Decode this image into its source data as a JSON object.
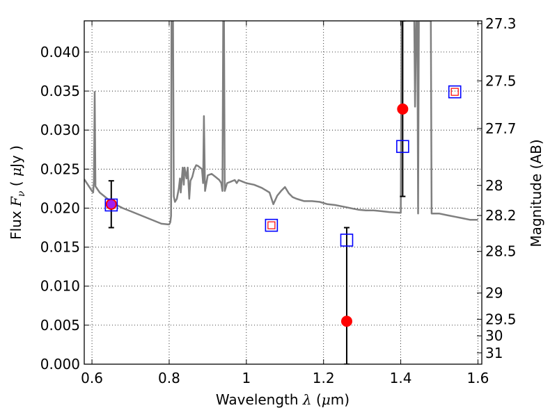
{
  "chart_data": {
    "type": "scatter",
    "xlabel": {
      "prefix": "Wavelength  ",
      "symbol": "λ",
      "unit_open": " (",
      "unit_sym": "μ",
      "unit_close": "m)"
    },
    "ylabel": {
      "prefix": "Flux  ",
      "symbol": "F",
      "sub": "ν",
      "unit_open": "  ( ",
      "unit_sym": "μ",
      "unit_close": "Jy )"
    },
    "y2label": "Magnitude (AB)",
    "xlim": [
      0.58,
      1.61
    ],
    "ylim": [
      0.0,
      0.044
    ],
    "grid": true,
    "x_ticks": [
      {
        "v": 0.6,
        "label": "0.6"
      },
      {
        "v": 0.8,
        "label": "0.8"
      },
      {
        "v": 1.0,
        "label": "1"
      },
      {
        "v": 1.2,
        "label": "1.2"
      },
      {
        "v": 1.4,
        "label": "1.4"
      },
      {
        "v": 1.6,
        "label": "1.6"
      }
    ],
    "y_ticks": [
      {
        "v": 0.0,
        "label": "0.000"
      },
      {
        "v": 0.005,
        "label": "0.005"
      },
      {
        "v": 0.01,
        "label": "0.010"
      },
      {
        "v": 0.015,
        "label": "0.015"
      },
      {
        "v": 0.02,
        "label": "0.020"
      },
      {
        "v": 0.025,
        "label": "0.025"
      },
      {
        "v": 0.03,
        "label": "0.030"
      },
      {
        "v": 0.035,
        "label": "0.035"
      },
      {
        "v": 0.04,
        "label": "0.040"
      }
    ],
    "mag_ticks": [
      {
        "v": 27.3,
        "label": "27.3"
      },
      {
        "v": 27.5,
        "label": "27.5"
      },
      {
        "v": 27.7,
        "label": "27.7"
      },
      {
        "v": 28.0,
        "label": "28"
      },
      {
        "v": 28.2,
        "label": "28.2"
      },
      {
        "v": 28.5,
        "label": "28.5"
      },
      {
        "v": 29.0,
        "label": "29"
      },
      {
        "v": 29.5,
        "label": "29.5"
      },
      {
        "v": 30.0,
        "label": "30"
      },
      {
        "v": 31.0,
        "label": "31"
      }
    ],
    "model_spectrum": {
      "color": "#7f7f7f",
      "points": [
        [
          0.58,
          0.0237
        ],
        [
          0.6,
          0.0222
        ],
        [
          0.603,
          0.022
        ],
        [
          0.605,
          0.0235
        ],
        [
          0.607,
          0.0349
        ],
        [
          0.609,
          0.0228
        ],
        [
          0.62,
          0.022
        ],
        [
          0.64,
          0.0212
        ],
        [
          0.66,
          0.0205
        ],
        [
          0.68,
          0.02
        ],
        [
          0.7,
          0.0196
        ],
        [
          0.72,
          0.0192
        ],
        [
          0.74,
          0.0188
        ],
        [
          0.76,
          0.0184
        ],
        [
          0.78,
          0.018
        ],
        [
          0.8,
          0.0179
        ],
        [
          0.803,
          0.0182
        ],
        [
          0.805,
          0.019
        ],
        [
          0.806,
          0.044
        ],
        [
          0.808,
          0.044
        ],
        [
          0.81,
          0.044
        ],
        [
          0.812,
          0.0215
        ],
        [
          0.815,
          0.0208
        ],
        [
          0.82,
          0.0212
        ],
        [
          0.825,
          0.0225
        ],
        [
          0.828,
          0.0238
        ],
        [
          0.83,
          0.022
        ],
        [
          0.835,
          0.0252
        ],
        [
          0.838,
          0.023
        ],
        [
          0.84,
          0.0252
        ],
        [
          0.845,
          0.0238
        ],
        [
          0.848,
          0.0252
        ],
        [
          0.852,
          0.0212
        ],
        [
          0.855,
          0.0235
        ],
        [
          0.86,
          0.024
        ],
        [
          0.865,
          0.025
        ],
        [
          0.87,
          0.0255
        ],
        [
          0.875,
          0.0254
        ],
        [
          0.88,
          0.0252
        ],
        [
          0.885,
          0.025
        ],
        [
          0.888,
          0.0232
        ],
        [
          0.89,
          0.0318
        ],
        [
          0.893,
          0.0222
        ],
        [
          0.9,
          0.0242
        ],
        [
          0.91,
          0.0244
        ],
        [
          0.92,
          0.024
        ],
        [
          0.93,
          0.0236
        ],
        [
          0.935,
          0.0232
        ],
        [
          0.938,
          0.0222
        ],
        [
          0.94,
          0.044
        ],
        [
          0.942,
          0.044
        ],
        [
          0.944,
          0.0222
        ],
        [
          0.95,
          0.0232
        ],
        [
          0.96,
          0.0234
        ],
        [
          0.97,
          0.0236
        ],
        [
          0.975,
          0.0232
        ],
        [
          0.98,
          0.0236
        ],
        [
          0.99,
          0.0234
        ],
        [
          1.0,
          0.0232
        ],
        [
          1.02,
          0.023
        ],
        [
          1.04,
          0.0226
        ],
        [
          1.06,
          0.022
        ],
        [
          1.07,
          0.0205
        ],
        [
          1.08,
          0.0216
        ],
        [
          1.09,
          0.0222
        ],
        [
          1.1,
          0.0227
        ],
        [
          1.11,
          0.0219
        ],
        [
          1.12,
          0.0214
        ],
        [
          1.13,
          0.0212
        ],
        [
          1.15,
          0.0209
        ],
        [
          1.17,
          0.0209
        ],
        [
          1.19,
          0.0208
        ],
        [
          1.21,
          0.0205
        ],
        [
          1.23,
          0.0204
        ],
        [
          1.25,
          0.0202
        ],
        [
          1.27,
          0.02
        ],
        [
          1.29,
          0.0198
        ],
        [
          1.31,
          0.0197
        ],
        [
          1.33,
          0.0197
        ],
        [
          1.35,
          0.0196
        ],
        [
          1.37,
          0.0195
        ],
        [
          1.4,
          0.0194
        ],
        [
          1.402,
          0.044
        ],
        [
          1.41,
          0.044
        ],
        [
          1.43,
          0.044
        ],
        [
          1.435,
          0.044
        ],
        [
          1.437,
          0.033
        ],
        [
          1.44,
          0.044
        ],
        [
          1.443,
          0.044
        ],
        [
          1.445,
          0.0193
        ],
        [
          1.447,
          0.044
        ],
        [
          1.47,
          0.044
        ],
        [
          1.478,
          0.044
        ],
        [
          1.48,
          0.0193
        ],
        [
          1.5,
          0.0193
        ],
        [
          1.52,
          0.0191
        ],
        [
          1.54,
          0.0189
        ],
        [
          1.56,
          0.0187
        ],
        [
          1.58,
          0.0185
        ],
        [
          1.6,
          0.0185
        ]
      ]
    },
    "series": [
      {
        "marker": "circle",
        "color": "#ff0000",
        "points": [
          {
            "x": 0.65,
            "y": 0.0205,
            "yerr_lo": 0.0175,
            "yerr_hi": 0.0235
          },
          {
            "x": 1.26,
            "y": 0.0055,
            "yerr_lo": 0.0,
            "yerr_hi": 0.0175
          },
          {
            "x": 1.405,
            "y": 0.0327,
            "yerr_lo": 0.0215,
            "yerr_hi": 0.044
          }
        ]
      },
      {
        "marker": "square-open",
        "color": "#0000ff",
        "points": [
          {
            "x": 0.65,
            "y": 0.0204
          },
          {
            "x": 1.065,
            "y": 0.0178
          },
          {
            "x": 1.26,
            "y": 0.0159
          },
          {
            "x": 1.405,
            "y": 0.0279
          },
          {
            "x": 1.54,
            "y": 0.0349
          }
        ]
      },
      {
        "marker": "square-open-small",
        "color": "#ff0000",
        "points": [
          {
            "x": 1.065,
            "y": 0.0178
          },
          {
            "x": 1.54,
            "y": 0.0349
          }
        ]
      },
      {
        "marker": "circle-small",
        "color": "#a020f0",
        "points": [
          {
            "x": 0.65,
            "y": 0.0205
          }
        ]
      }
    ]
  }
}
